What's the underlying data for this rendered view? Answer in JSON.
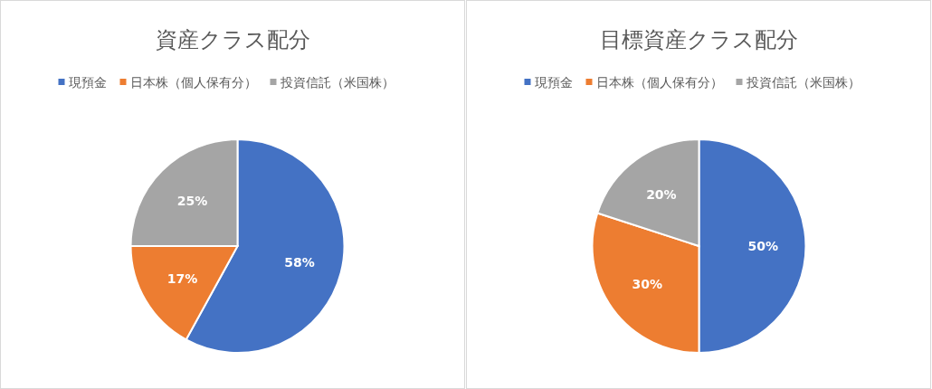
{
  "chart_data": [
    {
      "type": "pie",
      "title": "資産クラス配分",
      "categories": [
        "現預金",
        "日本株（個人保有分）",
        "投資信託（米国株）"
      ],
      "values": [
        58,
        17,
        25
      ],
      "colors": [
        "#4472c4",
        "#ed7d31",
        "#a5a5a5"
      ],
      "value_labels": [
        "58%",
        "17%",
        "25%"
      ],
      "legend": "top"
    },
    {
      "type": "pie",
      "title": "目標資産クラス配分",
      "categories": [
        "現預金",
        "日本株（個人保有分）",
        "投資信託（米国株）"
      ],
      "values": [
        50,
        30,
        20
      ],
      "colors": [
        "#4472c4",
        "#ed7d31",
        "#a5a5a5"
      ],
      "value_labels": [
        "50%",
        "30%",
        "20%"
      ],
      "legend": "top"
    }
  ]
}
